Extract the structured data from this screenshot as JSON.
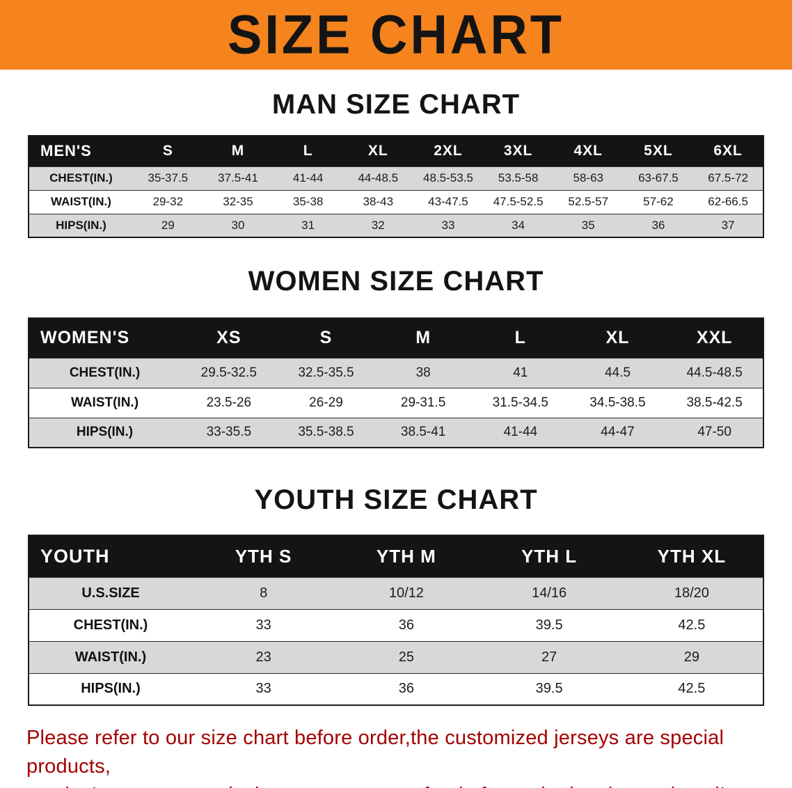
{
  "banner": {
    "title": "SIZE CHART",
    "bg_color": "#f5831e"
  },
  "sections": [
    {
      "heading": "MAN SIZE CHART",
      "table": {
        "header": [
          "MEN'S",
          "S",
          "M",
          "L",
          "XL",
          "2XL",
          "3XL",
          "4XL",
          "5XL",
          "6XL"
        ],
        "rows": [
          [
            "CHEST(IN.)",
            "35-37.5",
            "37.5-41",
            "41-44",
            "44-48.5",
            "48.5-53.5",
            "53.5-58",
            "58-63",
            "63-67.5",
            "67.5-72"
          ],
          [
            "WAIST(IN.)",
            "29-32",
            "32-35",
            "35-38",
            "38-43",
            "43-47.5",
            "47.5-52.5",
            "52.5-57",
            "57-62",
            "62-66.5"
          ],
          [
            "HIPS(IN.)",
            "29",
            "30",
            "31",
            "32",
            "33",
            "34",
            "35",
            "36",
            "37"
          ]
        ]
      }
    },
    {
      "heading": "WOMEN SIZE CHART",
      "table": {
        "header": [
          "WOMEN'S",
          "XS",
          "S",
          "M",
          "L",
          "XL",
          "XXL"
        ],
        "rows": [
          [
            "CHEST(IN.)",
            "29.5-32.5",
            "32.5-35.5",
            "38",
            "41",
            "44.5",
            "44.5-48.5"
          ],
          [
            "WAIST(IN.)",
            "23.5-26",
            "26-29",
            "29-31.5",
            "31.5-34.5",
            "34.5-38.5",
            "38.5-42.5"
          ],
          [
            "HIPS(IN.)",
            "33-35.5",
            "35.5-38.5",
            "38.5-41",
            "41-44",
            "44-47",
            "47-50"
          ]
        ]
      }
    },
    {
      "heading": "YOUTH SIZE CHART",
      "table": {
        "header": [
          "YOUTH",
          "YTH S",
          "YTH M",
          "YTH L",
          "YTH XL"
        ],
        "rows": [
          [
            "U.S.SIZE",
            "8",
            "10/12",
            "14/16",
            "18/20"
          ],
          [
            "CHEST(IN.)",
            "33",
            "36",
            "39.5",
            "42.5"
          ],
          [
            "WAIST(IN.)",
            "23",
            "25",
            "27",
            "29"
          ],
          [
            "HIPS(IN.)",
            "33",
            "36",
            "39.5",
            "42.5"
          ]
        ]
      }
    }
  ],
  "disclaimer": {
    "line1": "Please refer to our size chart before order,the customized jerseys are special products,",
    "line2": "we don't accept cancel, change, teturn or refund after order has been placed!",
    "color": "#a40000"
  }
}
